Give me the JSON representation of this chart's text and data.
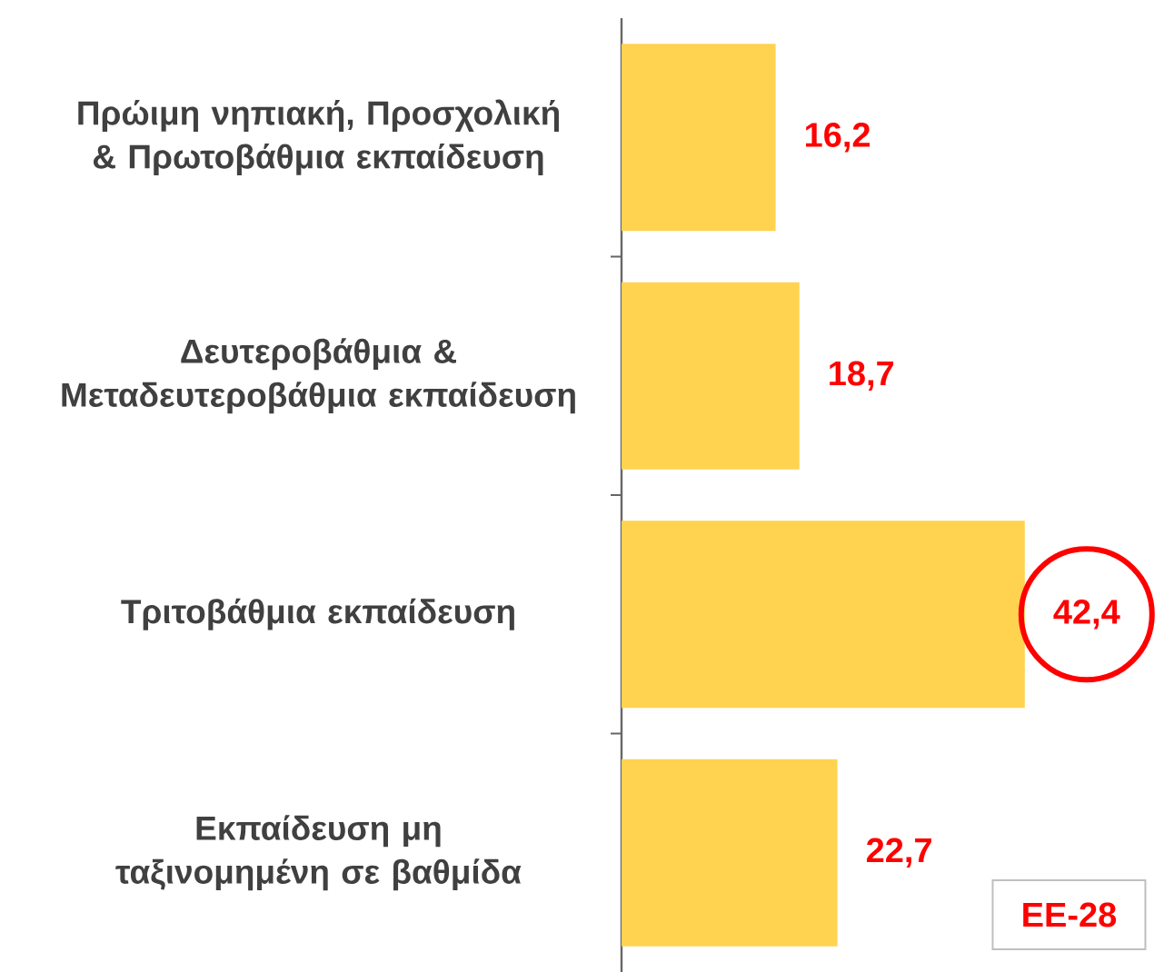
{
  "chart_data": {
    "type": "bar",
    "orientation": "horizontal",
    "categories": [
      "Πρώιμη νηπιακή, Προσχολική & Πρωτοβάθμια εκπαίδευση",
      "Δευτεροβάθμια & Μεταδευτεροβάθμια εκπαίδευση",
      "Τριτοβάθμια εκπαίδευση",
      "Εκπαίδευση μη ταξινομημένη σε βαθμίδα"
    ],
    "values": [
      16.2,
      18.7,
      42.4,
      22.7
    ],
    "value_labels": [
      "16,2",
      "18,7",
      "42,4",
      "22,7"
    ],
    "color": "#ffd34f",
    "annotations": [
      "EE-28"
    ]
  }
}
